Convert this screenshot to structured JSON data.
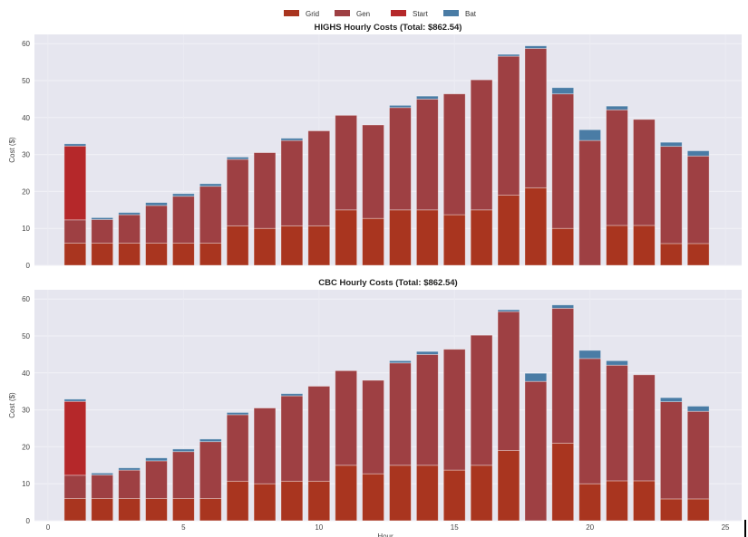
{
  "legend": {
    "placement": "top-center",
    "entries": [
      {
        "name": "Grid",
        "color": "#a9351f"
      },
      {
        "name": "Gen",
        "color": "#9e4043"
      },
      {
        "name": "Start",
        "color": "#b5282a"
      },
      {
        "name": "Bat",
        "color": "#4a7ca5"
      }
    ]
  },
  "chart_data": [
    {
      "type": "bar",
      "stacked": true,
      "title": "HIGHS Hourly Costs (Total: $862.54)",
      "xlabel": "",
      "ylabel": "Cost ($)",
      "xlim": [
        -0.5,
        25.6
      ],
      "ylim": [
        0,
        62.5
      ],
      "yticks": [
        0,
        10,
        20,
        30,
        40,
        50,
        60
      ],
      "xticks": [],
      "grid": true,
      "x": [
        1,
        2,
        3,
        4,
        5,
        6,
        7,
        8,
        9,
        10,
        11,
        12,
        13,
        14,
        15,
        16,
        17,
        18,
        19,
        20,
        21,
        22,
        23,
        24
      ],
      "series": [
        {
          "name": "Grid",
          "values": [
            6,
            6,
            6,
            6,
            6,
            6,
            10.7,
            10,
            10.7,
            10.7,
            15,
            12.7,
            15,
            15,
            13.7,
            15,
            19,
            21,
            10,
            0,
            10.8,
            10.8,
            5.9,
            5.9
          ]
        },
        {
          "name": "Gen",
          "values": [
            6.3,
            6.4,
            7.7,
            10.2,
            12.7,
            15.4,
            18,
            20.5,
            23.1,
            25.7,
            25.6,
            25.3,
            27.7,
            30,
            32.7,
            35.2,
            37.6,
            37.7,
            36.4,
            33.8,
            31.3,
            28.7,
            26.3,
            23.7
          ]
        },
        {
          "name": "Start",
          "values": [
            20,
            0,
            0,
            0,
            0,
            0,
            0,
            0,
            0,
            0,
            0,
            0,
            0,
            0,
            0,
            0,
            0,
            0,
            0,
            0,
            0,
            0,
            0,
            0
          ]
        },
        {
          "name": "Bat",
          "values": [
            0.6,
            0.5,
            0.6,
            0.8,
            0.7,
            0.7,
            0.6,
            0,
            0.6,
            0,
            0,
            0,
            0.6,
            0.8,
            0,
            0,
            0.5,
            0.7,
            1.7,
            2.9,
            1.0,
            0,
            1.1,
            1.4
          ]
        }
      ]
    },
    {
      "type": "bar",
      "stacked": true,
      "title": "CBC Hourly Costs (Total: $862.54)",
      "xlabel": "Hour",
      "ylabel": "Cost ($)",
      "xlim": [
        -0.5,
        25.6
      ],
      "ylim": [
        0,
        62.5
      ],
      "yticks": [
        0,
        10,
        20,
        30,
        40,
        50,
        60
      ],
      "xticks": [
        0,
        5,
        10,
        15,
        20,
        25
      ],
      "grid": true,
      "x": [
        1,
        2,
        3,
        4,
        5,
        6,
        7,
        8,
        9,
        10,
        11,
        12,
        13,
        14,
        15,
        16,
        17,
        18,
        19,
        20,
        21,
        22,
        23,
        24
      ],
      "series": [
        {
          "name": "Grid",
          "values": [
            6,
            6,
            6,
            6,
            6,
            6,
            10.7,
            10,
            10.7,
            10.7,
            15,
            12.7,
            15,
            15,
            13.7,
            15,
            19,
            0,
            21,
            10,
            10.8,
            10.8,
            5.9,
            5.9
          ]
        },
        {
          "name": "Gen",
          "values": [
            6.3,
            6.4,
            7.7,
            10.2,
            12.7,
            15.4,
            18,
            20.5,
            23.1,
            25.7,
            25.6,
            25.3,
            27.7,
            30,
            32.7,
            35.2,
            37.6,
            37.7,
            36.5,
            33.9,
            31.3,
            28.7,
            26.3,
            23.7
          ]
        },
        {
          "name": "Start",
          "values": [
            20,
            0,
            0,
            0,
            0,
            0,
            0,
            0,
            0,
            0,
            0,
            0,
            0,
            0,
            0,
            0,
            0,
            0,
            0,
            0,
            0,
            0,
            0,
            0
          ]
        },
        {
          "name": "Bat",
          "values": [
            0.6,
            0.5,
            0.6,
            0.8,
            0.7,
            0.7,
            0.6,
            0,
            0.6,
            0,
            0,
            0,
            0.6,
            0.8,
            0,
            0,
            0.5,
            2.2,
            0.9,
            2.2,
            1.2,
            0,
            1.1,
            1.4
          ]
        }
      ]
    }
  ]
}
